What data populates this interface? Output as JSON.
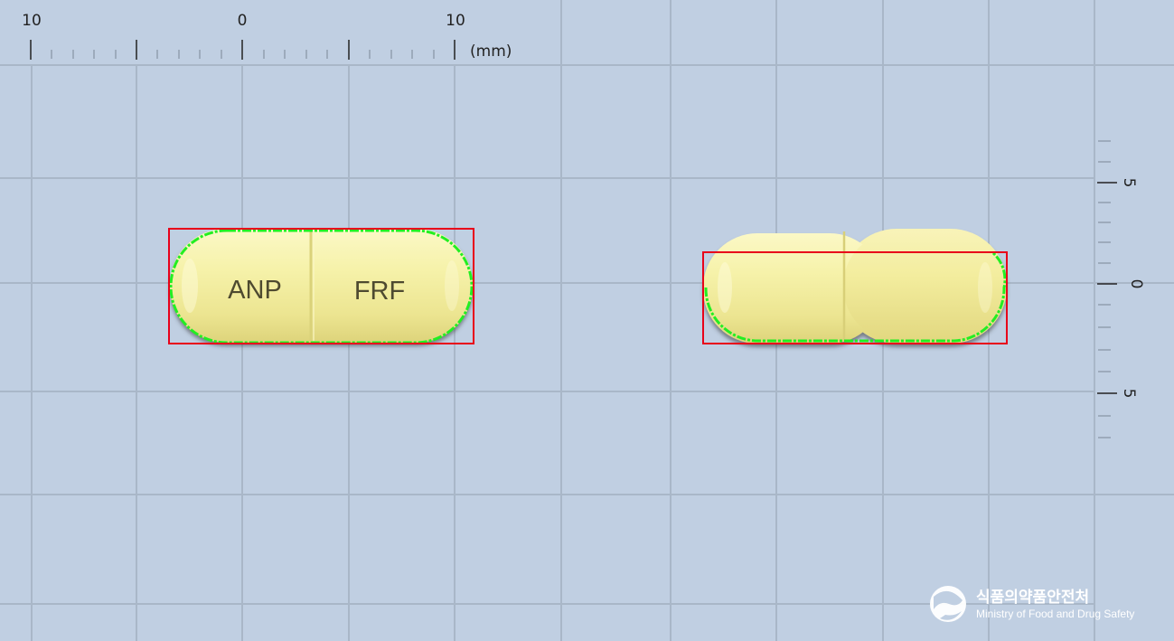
{
  "ruler_top": {
    "unit_label": "(mm)",
    "labels": [
      "10",
      "0",
      "10"
    ]
  },
  "ruler_right": {
    "labels": [
      "5",
      "0",
      "5"
    ]
  },
  "capsule_front": {
    "left_imprint": "ANP",
    "right_imprint": "FRF"
  },
  "logo": {
    "korean": "식품의약품안전처",
    "english": "Ministry of Food and Drug Safety"
  },
  "colors": {
    "background": "#c0cfe2",
    "capsule_yellow": "#f1ec9c",
    "bounding_box": "#e8001a",
    "outline": "#22ee22"
  }
}
